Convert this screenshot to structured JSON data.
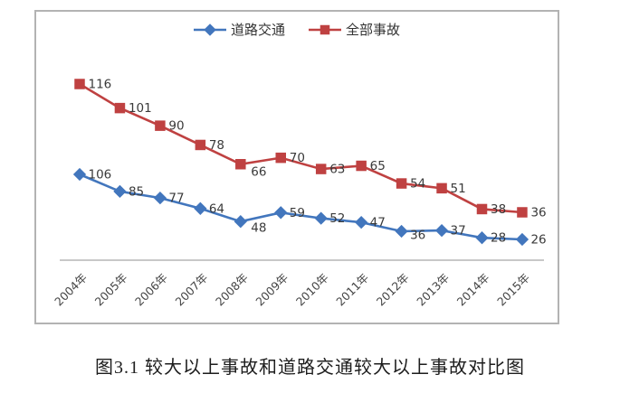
{
  "caption": "图3.1 较大以上事故和道路交通较大以上事故对比图",
  "chart_data": {
    "type": "line",
    "categories": [
      "2004年",
      "2005年",
      "2006年",
      "2007年",
      "2008年",
      "2009年",
      "2010年",
      "2011年",
      "2012年",
      "2013年",
      "2014年",
      "2015年"
    ],
    "series": [
      {
        "name": "道路交通",
        "marker": "diamond",
        "color": "#4276bd",
        "values": [
          106,
          85,
          77,
          64,
          48,
          59,
          52,
          47,
          36,
          37,
          28,
          26
        ]
      },
      {
        "name": "全部事故",
        "marker": "square",
        "color": "#bf4141",
        "values": [
          116,
          101,
          90,
          78,
          66,
          70,
          63,
          65,
          54,
          51,
          38,
          36
        ]
      }
    ],
    "title": "",
    "xlabel": "",
    "ylabel": "",
    "legend_position": "top-center",
    "grid": false,
    "data_labels": true,
    "label_color": "#3a3a3a",
    "axis_line_color": "#a6a6a6",
    "tick_label_color": "#454545"
  }
}
